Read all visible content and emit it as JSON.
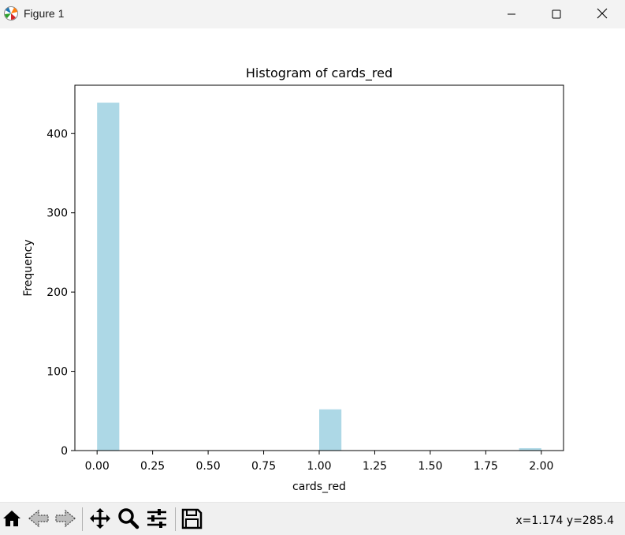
{
  "window": {
    "title": "Figure 1",
    "icons": {
      "app": "matplotlib-figure-icon",
      "minimize": "minimize-icon",
      "maximize": "maximize-icon",
      "close": "close-icon"
    }
  },
  "toolbar": {
    "buttons": [
      {
        "name": "home-icon",
        "action": "Home"
      },
      {
        "name": "back-arrow-icon",
        "action": "Back"
      },
      {
        "name": "forward-arrow-icon",
        "action": "Forward"
      },
      {
        "name": "pan-icon",
        "action": "Pan"
      },
      {
        "name": "zoom-icon",
        "action": "Zoom"
      },
      {
        "name": "subplots-config-icon",
        "action": "Configure subplots"
      },
      {
        "name": "save-icon",
        "action": "Save"
      }
    ],
    "coordinates": "x=1.174 y=285.4"
  },
  "colors": {
    "bar": "#add8e6",
    "titlebar": "#f3f3f3",
    "toolbar": "#f0f0f0"
  },
  "chart_data": {
    "type": "bar",
    "title": "Histogram of cards_red",
    "xlabel": "cards_red",
    "ylabel": "Frequency",
    "xlim": [
      -0.1,
      2.1
    ],
    "ylim": [
      0,
      461
    ],
    "xticks": [
      "0.00",
      "0.25",
      "0.50",
      "0.75",
      "1.00",
      "1.25",
      "1.50",
      "1.75",
      "2.00"
    ],
    "yticks": [
      "0",
      "100",
      "200",
      "300",
      "400"
    ],
    "bin_width": 0.1,
    "bins": [
      {
        "x0": 0.0,
        "x1": 0.1,
        "value": 439
      },
      {
        "x0": 1.0,
        "x1": 1.1,
        "value": 52
      },
      {
        "x0": 1.9,
        "x1": 2.0,
        "value": 3
      }
    ],
    "grid": false,
    "legend": "none"
  }
}
